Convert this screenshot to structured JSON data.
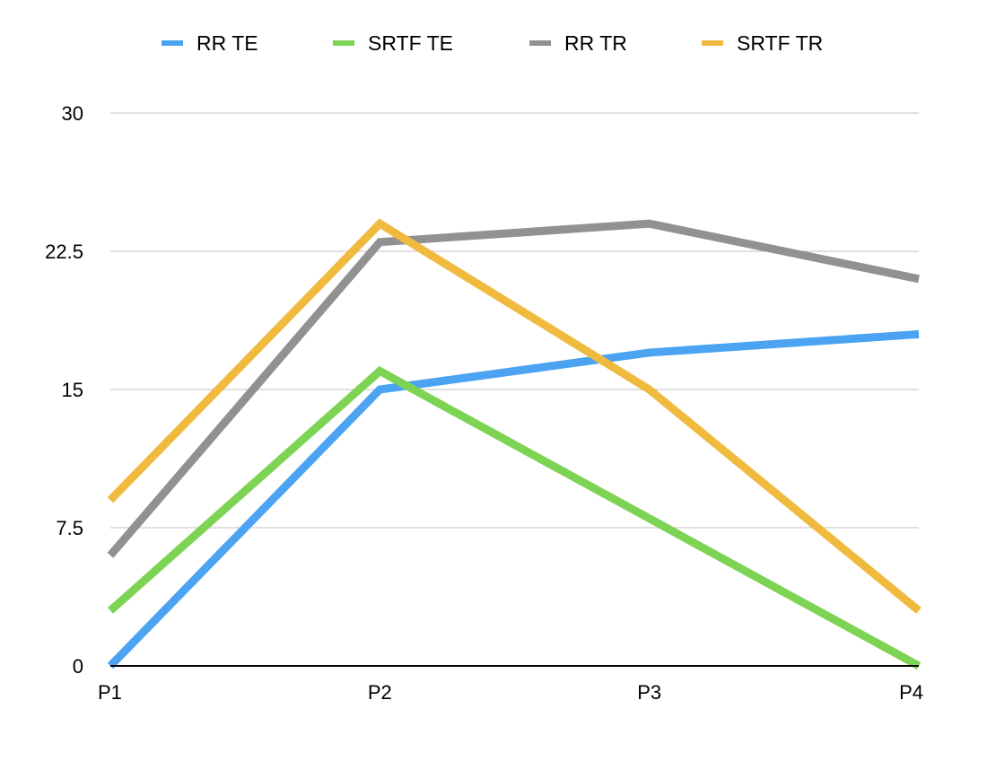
{
  "chart_data": {
    "type": "line",
    "categories": [
      "P1",
      "P2",
      "P3",
      "P4"
    ],
    "ylim": [
      0,
      30
    ],
    "yticks": [
      0,
      7.5,
      15,
      22.5,
      30
    ],
    "ytick_labels": [
      "0",
      "7.5",
      "15",
      "22.5",
      "30"
    ],
    "grid": true,
    "legend_position": "top",
    "series": [
      {
        "name": "RR TE",
        "color": "#4BA3F2",
        "values": [
          0,
          15,
          17,
          18
        ]
      },
      {
        "name": "SRTF TE",
        "color": "#7DD354",
        "values": [
          3,
          16,
          8,
          0
        ]
      },
      {
        "name": "RR TR",
        "color": "#919191",
        "values": [
          6,
          23,
          24,
          21
        ]
      },
      {
        "name": "SRTF TR",
        "color": "#F0BA3F",
        "values": [
          9,
          24,
          15,
          3
        ]
      }
    ],
    "title": "",
    "xlabel": "",
    "ylabel": ""
  }
}
